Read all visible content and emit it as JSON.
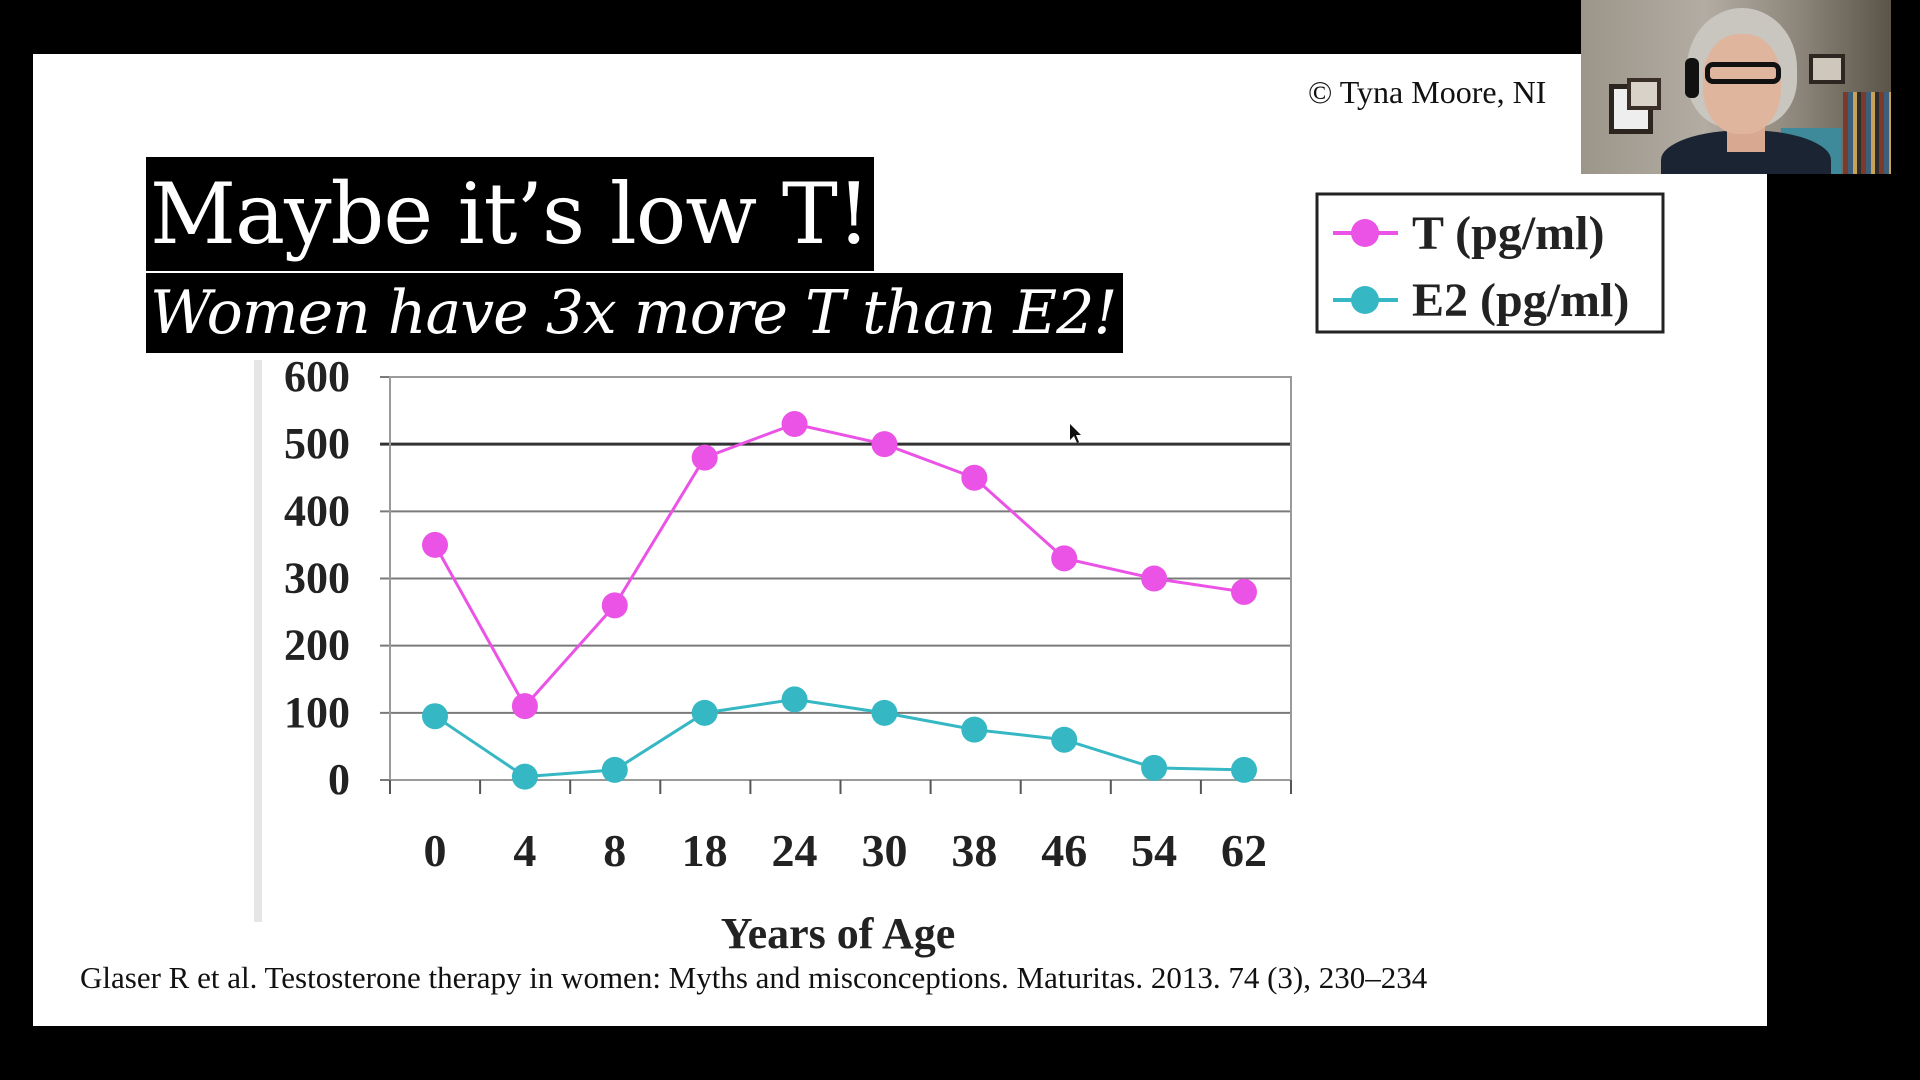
{
  "slide": {
    "copyright": "© Tyna Moore, NI",
    "title": "Maybe it’s low T!",
    "subtitle": "Women have 3x more T than E2!",
    "citation": "Glaser R et al.  Testosterone therapy in women: Myths and misconceptions. Maturitas. 2013. 74 (3), 230–234"
  },
  "video": {
    "icon": "presenter-video-tile"
  },
  "colors": {
    "t_series": "#ea53e5",
    "e2_series": "#36b8c4",
    "gridline": "#7a7a7a"
  },
  "chart_data": {
    "type": "line",
    "categories": [
      "0",
      "4",
      "8",
      "18",
      "24",
      "30",
      "38",
      "46",
      "54",
      "62"
    ],
    "series": [
      {
        "name": "T (pg/ml)",
        "values": [
          350,
          110,
          260,
          480,
          530,
          500,
          450,
          330,
          300,
          280
        ]
      },
      {
        "name": "E2 (pg/ml)",
        "values": [
          95,
          5,
          15,
          100,
          120,
          100,
          75,
          60,
          18,
          15
        ]
      }
    ],
    "y_ticks": [
      0,
      100,
      200,
      300,
      400,
      500,
      600
    ],
    "ylim": [
      0,
      600
    ],
    "xlabel": "Years of Age",
    "ylabel": "",
    "grid": true,
    "legend": "top-right"
  }
}
